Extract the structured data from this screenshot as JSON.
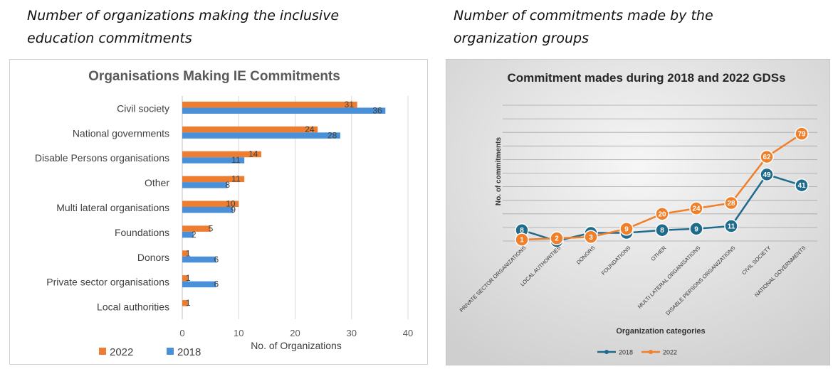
{
  "captions": {
    "left": [
      "Number of organizations making the inclusive",
      "education commitments"
    ],
    "right": [
      "Number of commitments made by the",
      "organization groups"
    ]
  },
  "chart_data": [
    {
      "type": "bar",
      "orientation": "horizontal",
      "title": "Organisations Making  IE Commitments",
      "xlabel": "No. of Organizations",
      "ylabel": "",
      "xlim": [
        0,
        40
      ],
      "xticks": [
        0,
        10,
        20,
        30,
        40
      ],
      "grid": true,
      "legend_position": "bottom-left",
      "categories": [
        "Civil society",
        "National governments",
        "Disable Persons organisations",
        "Other",
        "Multi lateral organisations",
        "Foundations",
        "Donors",
        "Private sector organisations",
        "Local authorities"
      ],
      "series": [
        {
          "name": "2022",
          "color": "#ed7d31",
          "values": [
            31,
            24,
            14,
            11,
            10,
            5,
            1,
            1,
            1
          ]
        },
        {
          "name": "2018",
          "color": "#4a90d9",
          "values": [
            36,
            28,
            11,
            8,
            9,
            2,
            6,
            6,
            null
          ]
        }
      ]
    },
    {
      "type": "line",
      "title": "Commitment mades during 2018 and 2022 GDSs",
      "xlabel": "Organization categories",
      "ylabel": "No. of commitments",
      "ylim": [
        0,
        100
      ],
      "grid": true,
      "legend_position": "bottom-center",
      "categories": [
        "PRIVATE SECTOR ORGANIZATIONS",
        "LOCAL AUTHORITIES",
        "DONORS",
        "FOUNDATIONS",
        "OTHER",
        "MULTI LATERAL ORGANISATIONS",
        "DISABLE PERSONS ORGANIZATIONS",
        "CIVIL SOCIETY",
        "NATIONAL GOVERNMENTS"
      ],
      "series": [
        {
          "name": "2018",
          "color": "#1f6b8c",
          "values": [
            8,
            0,
            6,
            6,
            8,
            9,
            11,
            49,
            41
          ]
        },
        {
          "name": "2022",
          "color": "#f07f2a",
          "values": [
            1,
            2,
            3,
            9,
            20,
            24,
            28,
            62,
            79
          ]
        }
      ]
    }
  ]
}
